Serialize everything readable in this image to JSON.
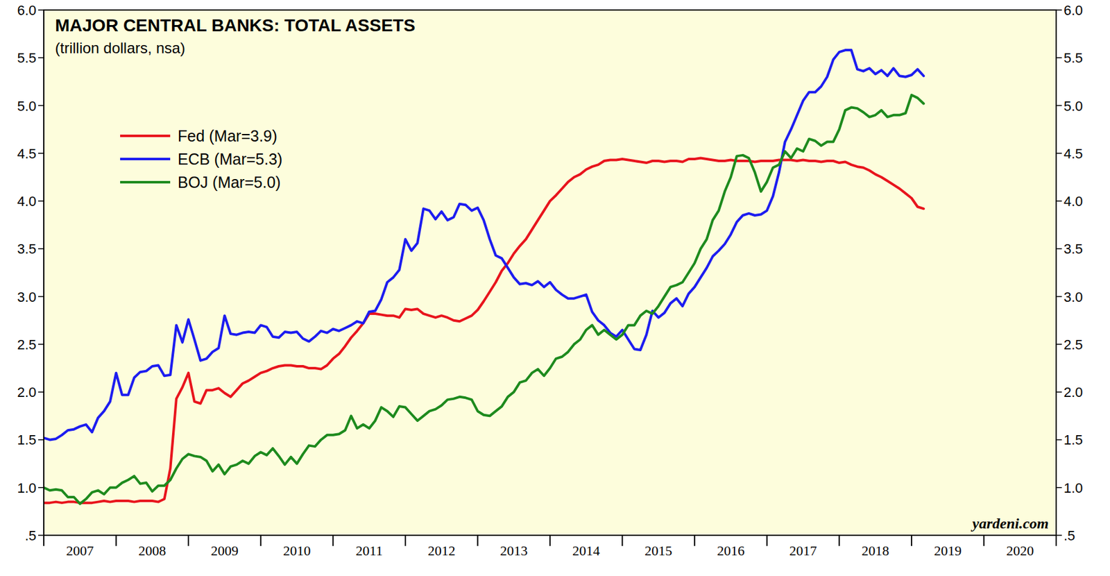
{
  "chart_data": {
    "type": "line",
    "title": "MAJOR CENTRAL BANKS: TOTAL ASSETS",
    "subtitle": "(trillion dollars, nsa)",
    "annotations": [
      "yardeni.com"
    ],
    "legend": "upper left",
    "grid": false,
    "xlim": [
      2007,
      2021
    ],
    "xticks": [
      {
        "value": 2007.5,
        "label": "2007"
      },
      {
        "value": 2008.5,
        "label": "2008"
      },
      {
        "value": 2009.5,
        "label": "2009"
      },
      {
        "value": 2010.5,
        "label": "2010"
      },
      {
        "value": 2011.5,
        "label": "2011"
      },
      {
        "value": 2012.5,
        "label": "2012"
      },
      {
        "value": 2013.5,
        "label": "2013"
      },
      {
        "value": 2014.5,
        "label": "2014"
      },
      {
        "value": 2015.5,
        "label": "2015"
      },
      {
        "value": 2016.5,
        "label": "2016"
      },
      {
        "value": 2017.5,
        "label": "2017"
      },
      {
        "value": 2018.5,
        "label": "2018"
      },
      {
        "value": 2019.5,
        "label": "2019"
      },
      {
        "value": 2020.5,
        "label": "2020"
      }
    ],
    "ylim": [
      0.5,
      6.0
    ],
    "yticks": [
      {
        "value": 0.5,
        "label": ".5"
      },
      {
        "value": 1.0,
        "label": "1.0"
      },
      1.5,
      {
        "value": 2.0,
        "label": "2.0"
      },
      2.5,
      {
        "value": 3.0,
        "label": "3.0"
      },
      3.5,
      {
        "value": 4.0,
        "label": "4.0"
      },
      4.5,
      {
        "value": 5.0,
        "label": "5.0"
      },
      5.5,
      {
        "value": 6.0,
        "label": "6.0"
      }
    ],
    "x": [
      2007,
      2007.083,
      2007.167,
      2007.25,
      2007.333,
      2007.417,
      2007.5,
      2007.583,
      2007.667,
      2007.75,
      2007.833,
      2007.917,
      2008,
      2008.083,
      2008.167,
      2008.25,
      2008.333,
      2008.417,
      2008.5,
      2008.583,
      2008.667,
      2008.75,
      2008.833,
      2008.917,
      2009,
      2009.083,
      2009.167,
      2009.25,
      2009.333,
      2009.417,
      2009.5,
      2009.583,
      2009.667,
      2009.75,
      2009.833,
      2009.917,
      2010,
      2010.083,
      2010.167,
      2010.25,
      2010.333,
      2010.417,
      2010.5,
      2010.583,
      2010.667,
      2010.75,
      2010.833,
      2010.917,
      2011,
      2011.083,
      2011.167,
      2011.25,
      2011.333,
      2011.417,
      2011.5,
      2011.583,
      2011.667,
      2011.75,
      2011.833,
      2011.917,
      2012,
      2012.083,
      2012.167,
      2012.25,
      2012.333,
      2012.417,
      2012.5,
      2012.583,
      2012.667,
      2012.75,
      2012.833,
      2012.917,
      2013,
      2013.083,
      2013.167,
      2013.25,
      2013.333,
      2013.417,
      2013.5,
      2013.583,
      2013.667,
      2013.75,
      2013.833,
      2013.917,
      2014,
      2014.083,
      2014.167,
      2014.25,
      2014.333,
      2014.417,
      2014.5,
      2014.583,
      2014.667,
      2014.75,
      2014.833,
      2014.917,
      2015,
      2015.083,
      2015.167,
      2015.25,
      2015.333,
      2015.417,
      2015.5,
      2015.583,
      2015.667,
      2015.75,
      2015.833,
      2015.917,
      2016,
      2016.083,
      2016.167,
      2016.25,
      2016.333,
      2016.417,
      2016.5,
      2016.583,
      2016.667,
      2016.75,
      2016.833,
      2016.917,
      2017,
      2017.083,
      2017.167,
      2017.25,
      2017.333,
      2017.417,
      2017.5,
      2017.583,
      2017.667,
      2017.75,
      2017.833,
      2017.917,
      2018,
      2018.083,
      2018.167,
      2018.25,
      2018.333,
      2018.417,
      2018.5,
      2018.583,
      2018.667,
      2018.75,
      2018.833,
      2018.917,
      2019,
      2019.083,
      2019.167
    ],
    "series": [
      {
        "name": "Fed (Mar=3.9)",
        "color": "#e8141c",
        "values": [
          0.84,
          0.84,
          0.85,
          0.84,
          0.85,
          0.85,
          0.84,
          0.84,
          0.84,
          0.85,
          0.86,
          0.85,
          0.86,
          0.86,
          0.86,
          0.85,
          0.86,
          0.86,
          0.86,
          0.85,
          0.88,
          1.2,
          1.93,
          2.05,
          2.2,
          1.9,
          1.88,
          2.02,
          2.02,
          2.04,
          1.99,
          1.95,
          2.02,
          2.09,
          2.12,
          2.16,
          2.2,
          2.22,
          2.25,
          2.27,
          2.28,
          2.28,
          2.27,
          2.27,
          2.25,
          2.25,
          2.24,
          2.28,
          2.35,
          2.4,
          2.48,
          2.57,
          2.64,
          2.72,
          2.82,
          2.82,
          2.81,
          2.8,
          2.8,
          2.78,
          2.87,
          2.86,
          2.87,
          2.82,
          2.8,
          2.78,
          2.8,
          2.78,
          2.75,
          2.74,
          2.77,
          2.8,
          2.86,
          2.95,
          3.05,
          3.15,
          3.27,
          3.35,
          3.45,
          3.53,
          3.6,
          3.7,
          3.8,
          3.9,
          4.0,
          4.06,
          4.13,
          4.2,
          4.25,
          4.28,
          4.33,
          4.36,
          4.38,
          4.42,
          4.43,
          4.43,
          4.44,
          4.43,
          4.42,
          4.41,
          4.4,
          4.42,
          4.42,
          4.41,
          4.42,
          4.42,
          4.41,
          4.44,
          4.44,
          4.45,
          4.44,
          4.43,
          4.42,
          4.42,
          4.43,
          4.42,
          4.42,
          4.42,
          4.41,
          4.42,
          4.42,
          4.42,
          4.43,
          4.43,
          4.43,
          4.42,
          4.43,
          4.42,
          4.42,
          4.41,
          4.42,
          4.42,
          4.4,
          4.41,
          4.38,
          4.36,
          4.35,
          4.32,
          4.28,
          4.25,
          4.21,
          4.17,
          4.13,
          4.08,
          4.03,
          3.94,
          3.92
        ]
      },
      {
        "name": "ECB (Mar=5.3)",
        "color": "#1c1cf0",
        "values": [
          1.52,
          1.5,
          1.51,
          1.55,
          1.6,
          1.61,
          1.64,
          1.66,
          1.58,
          1.73,
          1.8,
          1.9,
          2.2,
          1.97,
          1.97,
          2.15,
          2.21,
          2.22,
          2.27,
          2.28,
          2.17,
          2.18,
          2.7,
          2.52,
          2.76,
          2.55,
          2.33,
          2.35,
          2.42,
          2.46,
          2.8,
          2.61,
          2.6,
          2.62,
          2.63,
          2.62,
          2.7,
          2.68,
          2.58,
          2.57,
          2.63,
          2.62,
          2.63,
          2.56,
          2.53,
          2.58,
          2.64,
          2.62,
          2.66,
          2.64,
          2.67,
          2.7,
          2.74,
          2.72,
          2.84,
          2.85,
          2.97,
          3.15,
          3.2,
          3.28,
          3.6,
          3.48,
          3.56,
          3.92,
          3.9,
          3.81,
          3.89,
          3.8,
          3.83,
          3.97,
          3.96,
          3.9,
          3.93,
          3.8,
          3.6,
          3.43,
          3.4,
          3.3,
          3.2,
          3.13,
          3.14,
          3.12,
          3.16,
          3.1,
          3.15,
          3.07,
          3.02,
          2.98,
          2.98,
          3.0,
          3.02,
          2.84,
          2.75,
          2.7,
          2.62,
          2.58,
          2.65,
          2.55,
          2.45,
          2.44,
          2.6,
          2.85,
          2.78,
          2.83,
          2.93,
          2.98,
          2.9,
          3.03,
          3.1,
          3.2,
          3.3,
          3.42,
          3.48,
          3.55,
          3.65,
          3.78,
          3.85,
          3.87,
          3.85,
          3.86,
          3.9,
          4.05,
          4.3,
          4.62,
          4.75,
          4.9,
          5.05,
          5.14,
          5.14,
          5.2,
          5.3,
          5.48,
          5.56,
          5.58,
          5.58,
          5.38,
          5.36,
          5.39,
          5.33,
          5.37,
          5.31,
          5.39,
          5.31,
          5.3,
          5.32,
          5.38,
          5.31
        ]
      },
      {
        "name": "BOJ (Mar=5.0)",
        "color": "#1d8a1d",
        "values": [
          1.0,
          0.97,
          0.98,
          0.97,
          0.9,
          0.9,
          0.83,
          0.88,
          0.95,
          0.97,
          0.93,
          1.0,
          1.0,
          1.05,
          1.08,
          1.12,
          1.04,
          1.05,
          0.96,
          1.02,
          1.02,
          1.08,
          1.2,
          1.3,
          1.35,
          1.33,
          1.32,
          1.28,
          1.17,
          1.24,
          1.14,
          1.22,
          1.24,
          1.28,
          1.25,
          1.33,
          1.37,
          1.34,
          1.41,
          1.33,
          1.24,
          1.32,
          1.25,
          1.35,
          1.44,
          1.43,
          1.5,
          1.55,
          1.55,
          1.56,
          1.6,
          1.75,
          1.62,
          1.66,
          1.62,
          1.7,
          1.84,
          1.8,
          1.74,
          1.85,
          1.84,
          1.77,
          1.7,
          1.75,
          1.8,
          1.82,
          1.86,
          1.92,
          1.93,
          1.95,
          1.94,
          1.92,
          1.8,
          1.76,
          1.75,
          1.8,
          1.85,
          1.95,
          2.0,
          2.1,
          2.12,
          2.2,
          2.24,
          2.17,
          2.25,
          2.35,
          2.37,
          2.42,
          2.5,
          2.55,
          2.65,
          2.7,
          2.6,
          2.65,
          2.6,
          2.55,
          2.6,
          2.7,
          2.7,
          2.8,
          2.85,
          2.82,
          2.9,
          3.0,
          3.1,
          3.12,
          3.15,
          3.25,
          3.35,
          3.5,
          3.6,
          3.8,
          3.9,
          4.1,
          4.25,
          4.47,
          4.48,
          4.45,
          4.3,
          4.1,
          4.2,
          4.35,
          4.38,
          4.52,
          4.45,
          4.55,
          4.52,
          4.65,
          4.63,
          4.58,
          4.62,
          4.62,
          4.75,
          4.95,
          4.98,
          4.97,
          4.93,
          4.88,
          4.9,
          4.95,
          4.88,
          4.9,
          4.9,
          4.92,
          5.11,
          5.08,
          5.02
        ]
      }
    ]
  }
}
